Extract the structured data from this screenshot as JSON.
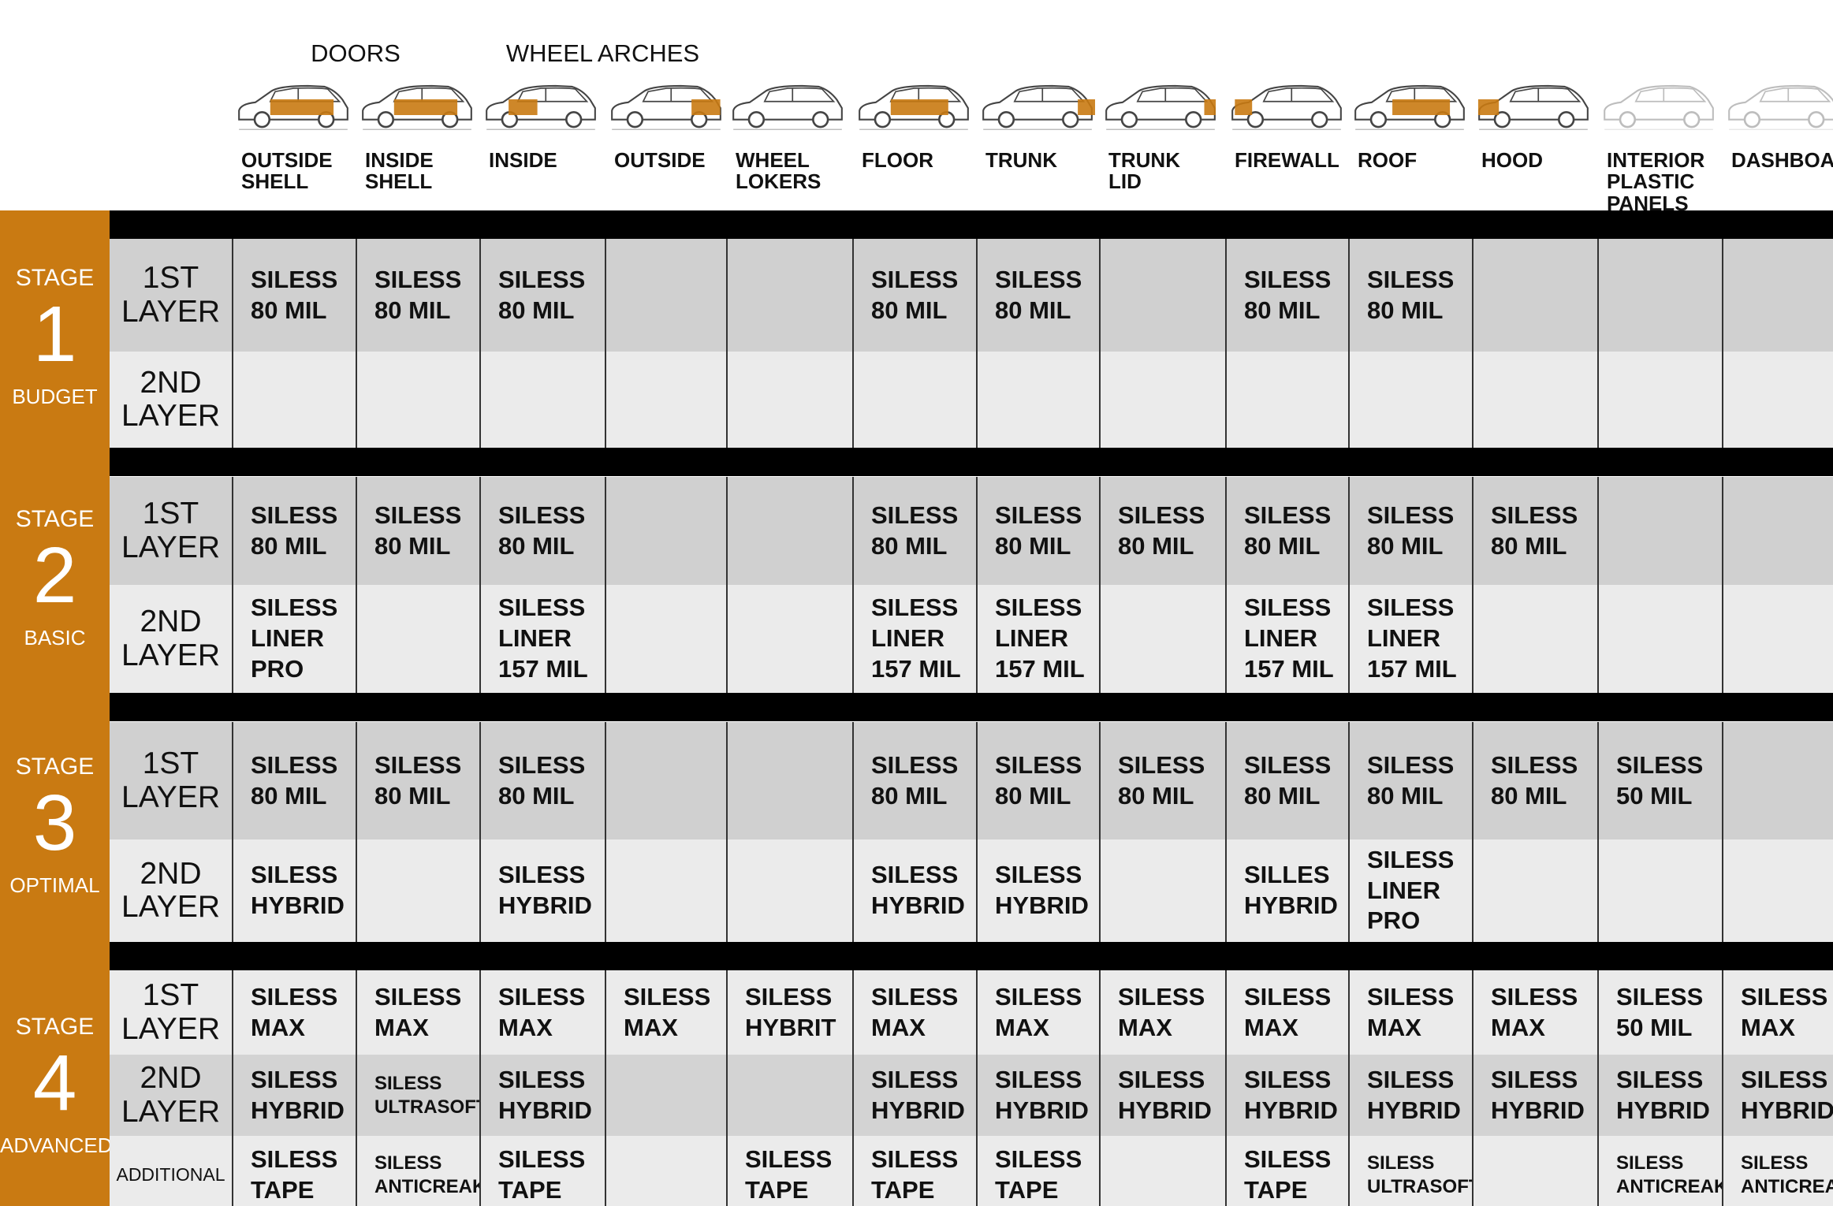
{
  "header": {
    "groups": [
      "DOORS",
      "WHEEL ARCHES"
    ],
    "columns": [
      "OUTSIDE\nSHELL",
      "INSIDE\nSHELL",
      "INSIDE",
      "OUTSIDE",
      "WHEEL\nLOKERS",
      "FLOOR",
      "TRUNK",
      "TRUNK\nLID",
      "FIREWALL",
      "ROOF",
      "HOOD",
      "INTERIOR\nPLASTIC\nPANELS",
      "DASHBOARD"
    ]
  },
  "stages": [
    {
      "label": "STAGE",
      "number": "1",
      "name": "BUDGET",
      "rows": [
        {
          "label": "1ST\nLAYER",
          "cells": [
            "SILESS\n80 MIL",
            "SILESS\n80 MIL",
            "SILESS\n80 MIL",
            null,
            null,
            "SILESS\n80 MIL",
            "SILESS\n80 MIL",
            null,
            "SILESS\n80 MIL",
            "SILESS\n80 MIL",
            null,
            null,
            null
          ]
        },
        {
          "label": "2ND\nLAYER",
          "cells": [
            null,
            null,
            null,
            null,
            null,
            null,
            null,
            null,
            null,
            null,
            null,
            null,
            null
          ]
        }
      ]
    },
    {
      "label": "STAGE",
      "number": "2",
      "name": "BASIC",
      "rows": [
        {
          "label": "1ST\nLAYER",
          "cells": [
            "SILESS\n80 MIL",
            "SILESS\n80 MIL",
            "SILESS\n80 MIL",
            null,
            null,
            "SILESS\n80 MIL",
            "SILESS\n80 MIL",
            "SILESS\n80 MIL",
            "SILESS\n80 MIL",
            "SILESS\n80 MIL",
            "SILESS\n80 MIL",
            null,
            null
          ]
        },
        {
          "label": "2ND\nLAYER",
          "cells": [
            "SILESS\nLINER\nPRO",
            null,
            "SILESS\nLINER\n157 MIL",
            null,
            null,
            "SILESS\nLINER\n157 MIL",
            "SILESS\nLINER\n157 MIL",
            null,
            "SILESS\nLINER\n157 MIL",
            "SILESS\nLINER\n157 MIL",
            null,
            null,
            null
          ]
        }
      ]
    },
    {
      "label": "STAGE",
      "number": "3",
      "name": "OPTIMAL",
      "rows": [
        {
          "label": "1ST\nLAYER",
          "cells": [
            "SILESS\n80 MIL",
            "SILESS\n80 MIL",
            "SILESS\n80 MIL",
            null,
            null,
            "SILESS\n80 MIL",
            "SILESS\n80 MIL",
            "SILESS\n80 MIL",
            "SILESS\n80 MIL",
            "SILESS\n80 MIL",
            "SILESS\n80 MIL",
            "SILESS\n50 MIL",
            null
          ]
        },
        {
          "label": "2ND\nLAYER",
          "cells": [
            "SILESS\nHYBRID",
            null,
            "SILESS\nHYBRID",
            null,
            null,
            "SILESS\nHYBRID",
            "SILESS\nHYBRID",
            null,
            "SILLES\nHYBRID",
            "SILESS\nLINER\nPRO",
            null,
            null,
            null
          ]
        }
      ]
    },
    {
      "label": "STAGE",
      "number": "4",
      "name": "ADVANCED",
      "rows": [
        {
          "label": "1ST\nLAYER",
          "cells": [
            "SILESS\nMAX",
            "SILESS\nMAX",
            "SILESS\nMAX",
            "SILESS\nMAX",
            "SILESS\nHYBRIT",
            "SILESS\nMAX",
            "SILESS\nMAX",
            "SILESS\nMAX",
            "SILESS\nMAX",
            "SILESS\nMAX",
            "SILESS\nMAX",
            "SILESS\n50 MIL",
            "SILESS\nMAX"
          ]
        },
        {
          "label": "2ND\nLAYER",
          "cells": [
            "SILESS\nHYBRID",
            "SILESS\nULTRASOFT",
            "SILESS\nHYBRID",
            null,
            null,
            "SILESS\nHYBRID",
            "SILESS\nHYBRID",
            "SILESS\nHYBRID",
            "SILESS\nHYBRID",
            "SILESS\nHYBRID",
            "SILESS\nHYBRID",
            "SILESS\nHYBRID",
            "SILESS\nHYBRID"
          ]
        },
        {
          "label": "ADDITIONAL",
          "cells": [
            "SILESS\nTAPE",
            "SILESS\nANTICREAK",
            "SILESS\nTAPE",
            null,
            "SILESS\nTAPE",
            "SILESS\nTAPE",
            "SILESS\nTAPE",
            null,
            "SILESS\nTAPE",
            "SILESS\nULTRASOFT",
            null,
            "SILESS\nANTICREAK",
            "SILESS\nANTICREAK"
          ]
        }
      ]
    }
  ]
}
